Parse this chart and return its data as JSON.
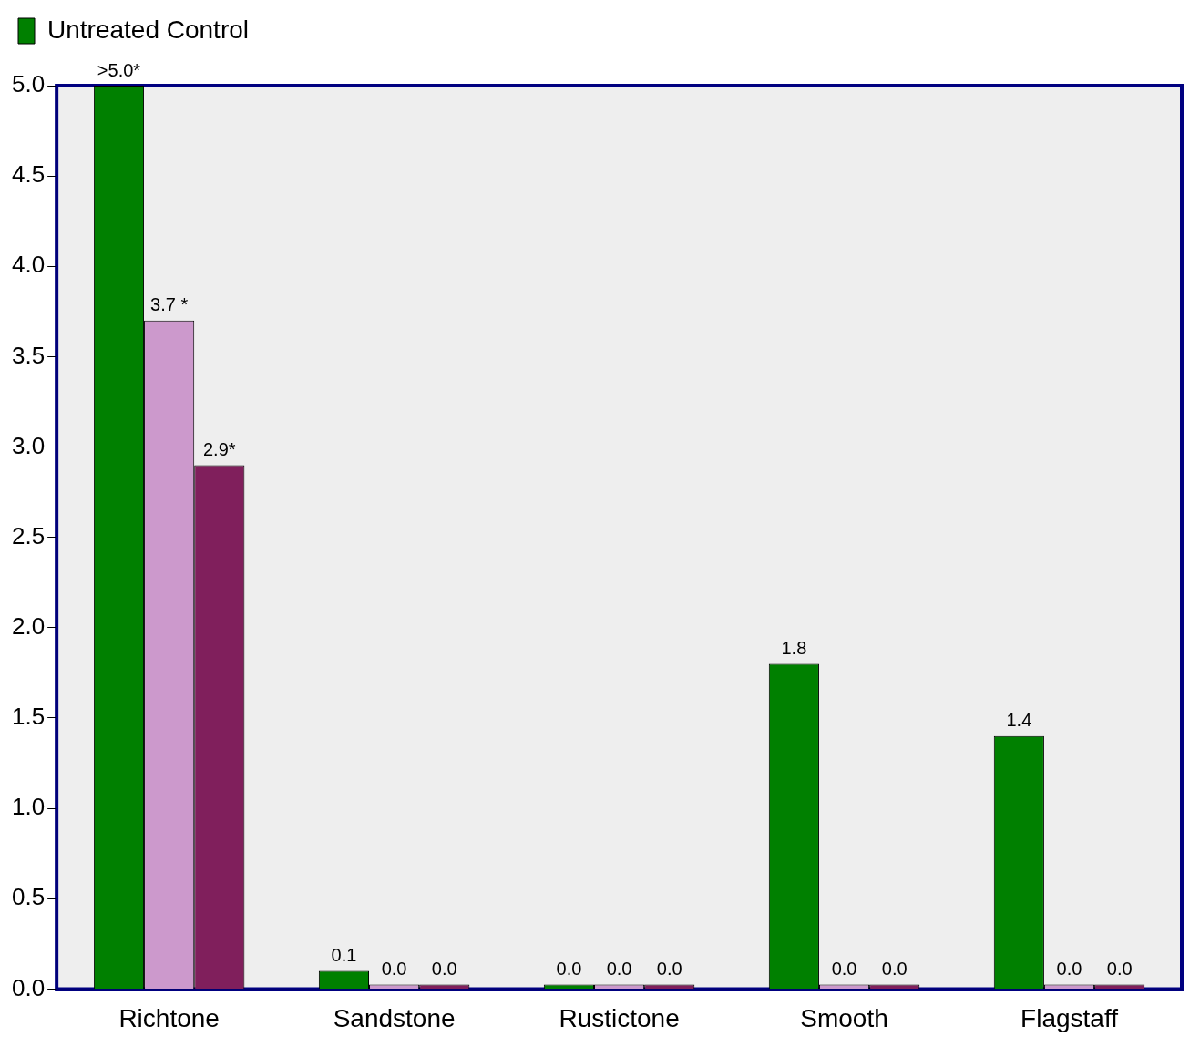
{
  "chart_data": {
    "type": "bar",
    "categories": [
      "Richtone",
      "Sandstone",
      "Rustictone",
      "Smooth",
      "Flagstaff"
    ],
    "series": [
      {
        "name": "Untreated Control",
        "color": "#008000",
        "values": [
          5.0,
          0.1,
          0.0,
          1.8,
          1.4
        ],
        "value_labels": [
          ">5.0*",
          "0.1",
          "0.0",
          "1.8",
          "1.4"
        ]
      },
      {
        "color": "#cc99cc",
        "values": [
          3.7,
          0.0,
          0.0,
          0.0,
          0.0
        ],
        "value_labels": [
          "3.7 *",
          "0.0",
          "0.0",
          "0.0",
          "0.0"
        ]
      },
      {
        "color": "#801f5c",
        "values": [
          2.9,
          0.0,
          0.0,
          0.0,
          0.0
        ],
        "value_labels": [
          "2.9*",
          "0.0",
          "0.0",
          "0.0",
          "0.0"
        ]
      }
    ],
    "ylim": [
      0,
      5
    ],
    "yticks": [
      {
        "value": 0,
        "label": "0.0"
      },
      {
        "value": 0.5,
        "label": "0.5"
      },
      {
        "value": 1,
        "label": "1.0"
      },
      {
        "value": 1.5,
        "label": "1.5"
      },
      {
        "value": 2,
        "label": "2.0"
      },
      {
        "value": 2.5,
        "label": "2.5"
      },
      {
        "value": 3,
        "label": "3.0"
      },
      {
        "value": 3.5,
        "label": "3.5"
      },
      {
        "value": 4,
        "label": "4.0"
      },
      {
        "value": 4.5,
        "label": "4.5"
      },
      {
        "value": 5,
        "label": "5.0"
      }
    ],
    "grid": false,
    "legend": "top left"
  }
}
